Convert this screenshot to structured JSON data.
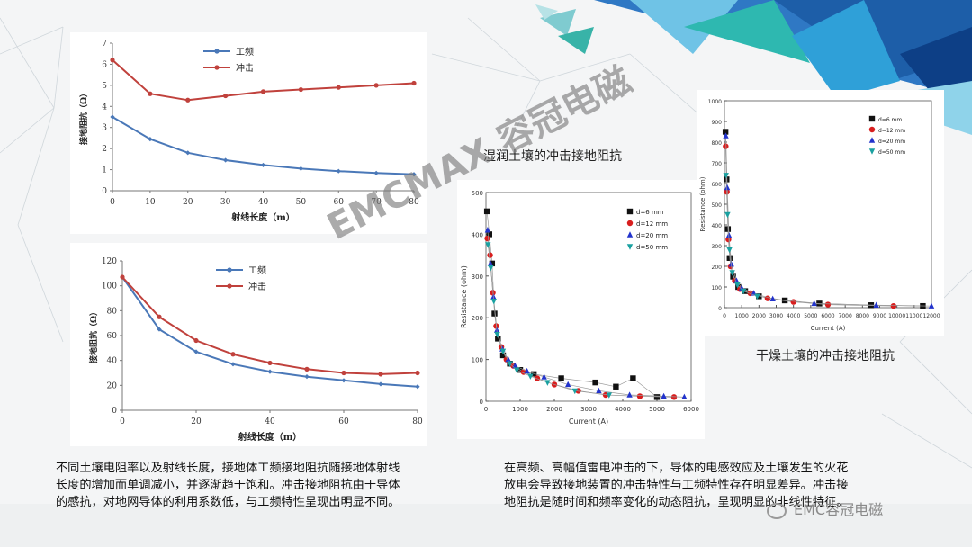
{
  "colors": {
    "series_a": "#4a78b8",
    "series_b": "#c0413c",
    "grid_ring": "#bfd4e3",
    "accent_teal": "#2eb8b0",
    "accent_blue": "#2f78c4"
  },
  "chart_data": [
    {
      "type": "line",
      "title": "",
      "xlabel": "射线长度（m）",
      "ylabel": "接地阻抗（Ω）",
      "xlim": [
        0,
        80
      ],
      "ylim": [
        0,
        7
      ],
      "xticks": [
        "0",
        "10",
        "20",
        "30",
        "40",
        "50",
        "60",
        "70",
        "80"
      ],
      "yticks": [
        "0",
        "1",
        "2",
        "3",
        "4",
        "5",
        "6",
        "7"
      ],
      "legend_position": "top-center",
      "x": [
        0,
        10,
        20,
        30,
        40,
        50,
        60,
        70,
        80
      ],
      "series": [
        {
          "name": "工频",
          "color": "#4a78b8",
          "values": [
            3.5,
            2.45,
            1.8,
            1.45,
            1.22,
            1.05,
            0.93,
            0.84,
            0.78
          ]
        },
        {
          "name": "冲击",
          "color": "#c0413c",
          "values": [
            6.2,
            4.6,
            4.3,
            4.5,
            4.7,
            4.8,
            4.9,
            5.0,
            5.1
          ]
        }
      ]
    },
    {
      "type": "line",
      "title": "",
      "xlabel": "射线长度（m）",
      "ylabel": "接地阻抗（Ω）",
      "xlim": [
        0,
        80
      ],
      "ylim": [
        0,
        120
      ],
      "xticks": [
        "0",
        "20",
        "40",
        "60",
        "80"
      ],
      "yticks": [
        "0",
        "20",
        "40",
        "60",
        "80",
        "100",
        "120"
      ],
      "legend_position": "top-center",
      "x": [
        0,
        10,
        20,
        30,
        40,
        50,
        60,
        70,
        80
      ],
      "series": [
        {
          "name": "工频",
          "color": "#4a78b8",
          "values": [
            107,
            65,
            47,
            37,
            31,
            27,
            24,
            21,
            19
          ]
        },
        {
          "name": "冲击",
          "color": "#c0413c",
          "values": [
            107,
            75,
            56,
            45,
            38,
            33,
            30,
            29,
            30
          ]
        }
      ]
    },
    {
      "type": "scatter",
      "title": "湿润土壤的冲击接地阻抗",
      "xlabel": "Current (A)",
      "ylabel": "Resistance (ohm)",
      "xlim": [
        0,
        6000
      ],
      "ylim": [
        0,
        500
      ],
      "xticks": [
        "0",
        "1000",
        "2000",
        "3000",
        "4000",
        "5000",
        "6000"
      ],
      "yticks": [
        "0",
        "100",
        "200",
        "300",
        "400",
        "500"
      ],
      "legend_position": "top-right",
      "series": [
        {
          "name": "d=6 mm",
          "color": "#111111",
          "marker": "square",
          "x": [
            30,
            100,
            180,
            250,
            350,
            500,
            700,
            1000,
            1400,
            2200,
            3200,
            3800,
            4300,
            5000
          ],
          "y": [
            455,
            400,
            330,
            210,
            150,
            110,
            90,
            75,
            65,
            55,
            45,
            35,
            55,
            10
          ]
        },
        {
          "name": "d=12 mm",
          "color": "#d81e1e",
          "marker": "circle",
          "x": [
            40,
            120,
            200,
            300,
            450,
            600,
            800,
            1100,
            1500,
            2000,
            2700,
            3500,
            4500,
            5500
          ],
          "y": [
            390,
            350,
            260,
            180,
            130,
            100,
            85,
            70,
            55,
            40,
            25,
            15,
            12,
            10
          ]
        },
        {
          "name": "d=20 mm",
          "color": "#2233cc",
          "marker": "triangle-up",
          "x": [
            50,
            130,
            220,
            320,
            480,
            650,
            850,
            1200,
            1700,
            2400,
            3300,
            4200,
            5200,
            5800
          ],
          "y": [
            410,
            330,
            250,
            170,
            125,
            100,
            85,
            72,
            58,
            40,
            25,
            15,
            12,
            10
          ]
        },
        {
          "name": "d=50 mm",
          "color": "#1aa1a1",
          "marker": "triangle-down",
          "x": [
            60,
            140,
            230,
            330,
            500,
            700,
            900,
            1300,
            1800,
            2600,
            3600
          ],
          "y": [
            375,
            320,
            240,
            160,
            120,
            90,
            75,
            60,
            45,
            25,
            15
          ]
        }
      ]
    },
    {
      "type": "scatter",
      "title": "干燥土壤的冲击接地阻抗",
      "xlabel": "Current (A)",
      "ylabel": "Resistance (ohm)",
      "xlim": [
        0,
        12000
      ],
      "ylim": [
        0,
        1000
      ],
      "xticks": [
        "0",
        "1000",
        "2000",
        "3000",
        "4000",
        "5000",
        "6000",
        "7000",
        "8000",
        "9000",
        "10000",
        "11000",
        "12000"
      ],
      "yticks": [
        "0",
        "100",
        "200",
        "300",
        "400",
        "500",
        "600",
        "700",
        "800",
        "900",
        "1000"
      ],
      "legend_position": "top-right",
      "series": [
        {
          "name": "d=6 mm",
          "color": "#111111",
          "marker": "square",
          "x": [
            60,
            120,
            200,
            300,
            500,
            800,
            1200,
            2000,
            3500,
            5500,
            8500,
            11500
          ],
          "y": [
            850,
            620,
            380,
            240,
            150,
            100,
            80,
            55,
            35,
            20,
            12,
            8
          ]
        },
        {
          "name": "d=12 mm",
          "color": "#d81e1e",
          "marker": "circle",
          "x": [
            70,
            140,
            230,
            350,
            600,
            900,
            1500,
            2500,
            4000,
            6000,
            9800
          ],
          "y": [
            780,
            560,
            330,
            200,
            130,
            90,
            70,
            45,
            28,
            15,
            8
          ]
        },
        {
          "name": "d=20 mm",
          "color": "#2233cc",
          "marker": "triangle-up",
          "x": [
            80,
            160,
            260,
            400,
            700,
            1000,
            1700,
            2800,
            5200,
            8800,
            12000
          ],
          "y": [
            830,
            580,
            350,
            210,
            130,
            95,
            70,
            42,
            20,
            12,
            8
          ]
        },
        {
          "name": "d=50 mm",
          "color": "#1aa1a1",
          "marker": "triangle-down",
          "x": [
            90,
            180,
            290,
            450,
            750,
            1100,
            1900
          ],
          "y": [
            640,
            450,
            280,
            170,
            110,
            80,
            55
          ]
        }
      ]
    }
  ],
  "captions": {
    "wet": "湿润土壤的冲击接地阻抗",
    "dry": "干燥土壤的冲击接地阻抗"
  },
  "paragraph_left": [
    "不同土壤电阻率以及射线长度，接地体工频接地阻抗随接地体射线",
    "长度的增加而单调减小，并逐渐趋于饱和。冲击接地阻抗由于导体",
    "的感抗，对地网导体的利用系数低，与工频特性呈现出明显不同。"
  ],
  "paragraph_right": [
    "在高频、高幅值雷电冲击的下，导体的电感效应及土壤发生的火花",
    "放电会导致接地装置的冲击特性与工频特性存在明显差异。冲击接",
    "地阻抗是随时间和频率变化的动态阻抗，呈现明显的非线性特征。"
  ],
  "watermark": "EMCMAX 容冠电磁",
  "footer_brand": "EMC容冠电磁"
}
